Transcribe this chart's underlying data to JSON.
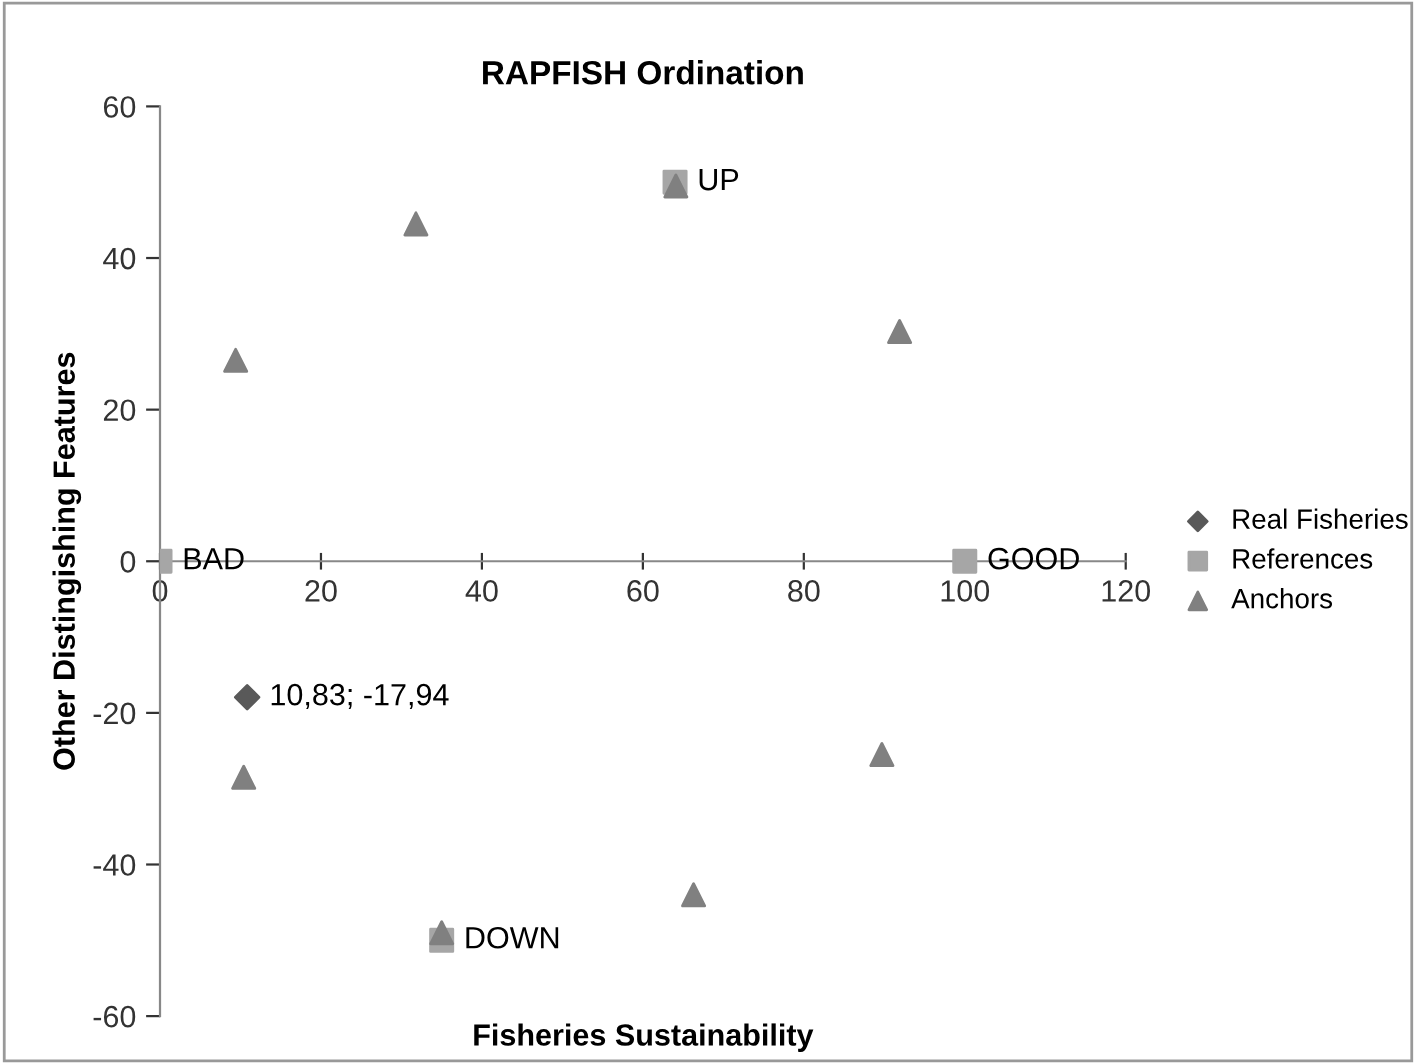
{
  "chart_data": {
    "type": "scatter",
    "title": "RAPFISH Ordination",
    "xlabel": "Fisheries Sustainability",
    "ylabel": "Other Distingishing Features",
    "xlim": [
      0,
      120
    ],
    "ylim": [
      -60,
      60
    ],
    "xticks": [
      0,
      20,
      40,
      60,
      80,
      100,
      120
    ],
    "yticks": [
      -60,
      -40,
      -20,
      0,
      20,
      40,
      60
    ],
    "grid": false,
    "legend": "right",
    "series": [
      {
        "name": "Real Fisheries",
        "color": "#595959",
        "marker": "diamond",
        "x": [
          10.83
        ],
        "values": [
          -17.94
        ]
      },
      {
        "name": "References",
        "color": "#a6a6a6",
        "marker": "square",
        "x": [
          0,
          100,
          64,
          35
        ],
        "values": [
          0,
          0,
          50,
          -50
        ]
      },
      {
        "name": "Anchors",
        "color": "#808080",
        "marker": "triangle",
        "x": [
          9.4,
          31.8,
          64.1,
          91.9,
          10.4,
          35.0,
          66.3,
          89.7
        ],
        "values": [
          26.5,
          44.5,
          49.5,
          30.3,
          -28.5,
          -49,
          -44,
          -25.5
        ]
      }
    ],
    "annotations": [
      {
        "text": "10,83; -17,94",
        "x": 10.83,
        "y": -17.94
      },
      {
        "text": "BAD",
        "x": 0,
        "y": 0
      },
      {
        "text": "GOOD",
        "x": 100,
        "y": 0
      },
      {
        "text": "UP",
        "x": 64,
        "y": 50
      },
      {
        "text": "DOWN",
        "x": 35,
        "y": -50
      }
    ]
  }
}
